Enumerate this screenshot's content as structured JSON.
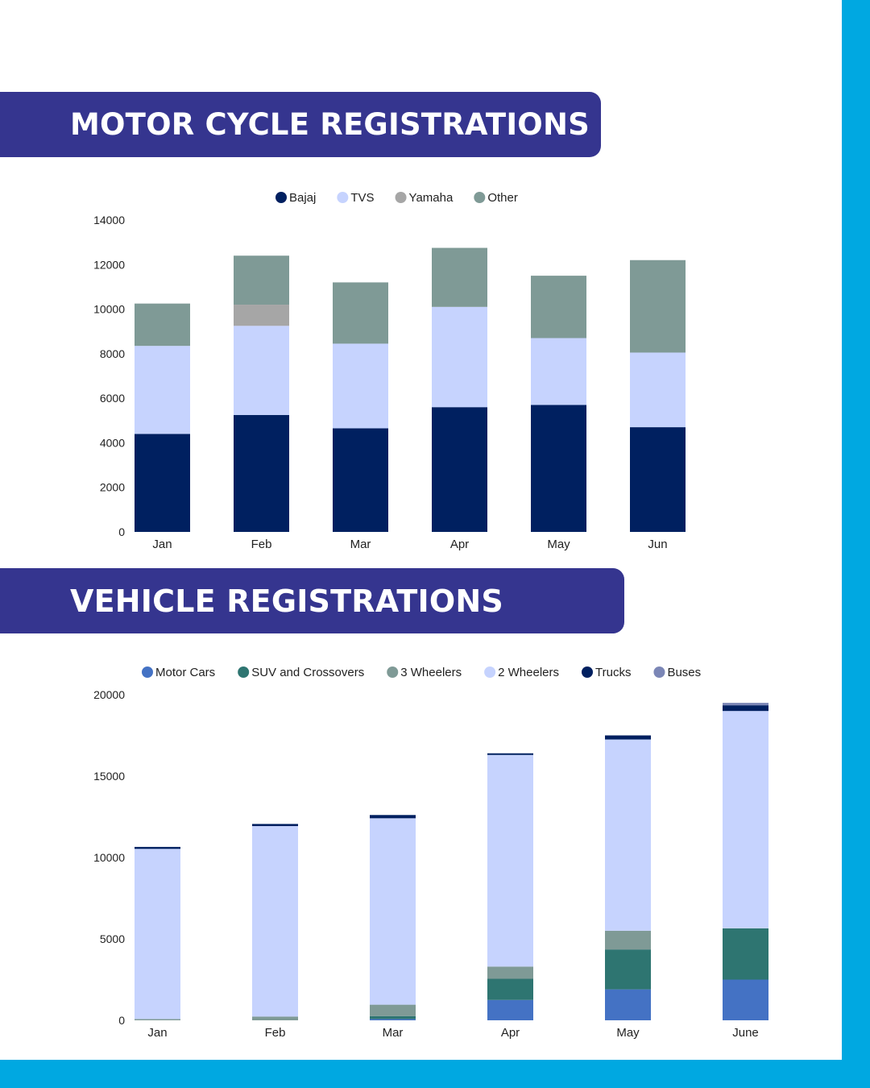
{
  "colors": {
    "frame": "#00a8e1",
    "banner": "#35358f",
    "bajaj": "#002060",
    "tvs": "#c6d3fe",
    "yamaha": "#a6a6a6",
    "other": "#7f9a96",
    "motor_cars": "#4472c4",
    "suv": "#2e7571",
    "three_wheelers": "#7f9a96",
    "two_wheelers": "#c6d3fe",
    "trucks": "#002060",
    "buses": "#7b86b6"
  },
  "sections": {
    "motorcycle_title": "MOTOR CYCLE REGISTRATIONS",
    "vehicle_title": "VEHICLE REGISTRATIONS"
  },
  "chart_data": [
    {
      "type": "bar",
      "stacked": true,
      "title": "",
      "xlabel": "",
      "ylabel": "",
      "categories": [
        "Jan",
        "Feb",
        "Mar",
        "Apr",
        "May",
        "Jun"
      ],
      "ylim": [
        0,
        14000
      ],
      "yticks": [
        0,
        2000,
        4000,
        6000,
        8000,
        10000,
        12000,
        14000
      ],
      "legend_position": "top",
      "series": [
        {
          "name": "Bajaj",
          "color": "#002060",
          "values": [
            4400,
            5250,
            4650,
            5600,
            5700,
            4700
          ]
        },
        {
          "name": "TVS",
          "color": "#c6d3fe",
          "values": [
            3950,
            4000,
            3800,
            4500,
            3000,
            3350
          ]
        },
        {
          "name": "Yamaha",
          "color": "#a6a6a6",
          "values": [
            0,
            950,
            0,
            0,
            0,
            0
          ]
        },
        {
          "name": "Other",
          "color": "#7f9a96",
          "values": [
            1900,
            2200,
            2750,
            2650,
            2800,
            4150
          ]
        }
      ]
    },
    {
      "type": "bar",
      "stacked": true,
      "title": "",
      "xlabel": "",
      "ylabel": "",
      "categories": [
        "Jan",
        "Feb",
        "Mar",
        "Apr",
        "May",
        "June"
      ],
      "ylim": [
        0,
        20000
      ],
      "yticks": [
        0,
        5000,
        10000,
        15000,
        20000
      ],
      "legend_position": "top",
      "series": [
        {
          "name": "Motor Cars",
          "color": "#4472c4",
          "values": [
            0,
            0,
            80,
            1250,
            1900,
            2500
          ]
        },
        {
          "name": "SUV and Crossovers",
          "color": "#2e7571",
          "values": [
            0,
            0,
            180,
            1300,
            2450,
            3150
          ]
        },
        {
          "name": "3 Wheelers",
          "color": "#7f9a96",
          "values": [
            80,
            230,
            700,
            750,
            1150,
            0
          ]
        },
        {
          "name": "2 Wheelers",
          "color": "#c6d3fe",
          "values": [
            10450,
            11700,
            11450,
            13000,
            11750,
            13350
          ]
        },
        {
          "name": "Trucks",
          "color": "#002060",
          "values": [
            120,
            130,
            200,
            100,
            250,
            350
          ]
        },
        {
          "name": "Buses",
          "color": "#7b86b6",
          "values": [
            0,
            0,
            0,
            0,
            0,
            150
          ]
        }
      ]
    }
  ]
}
